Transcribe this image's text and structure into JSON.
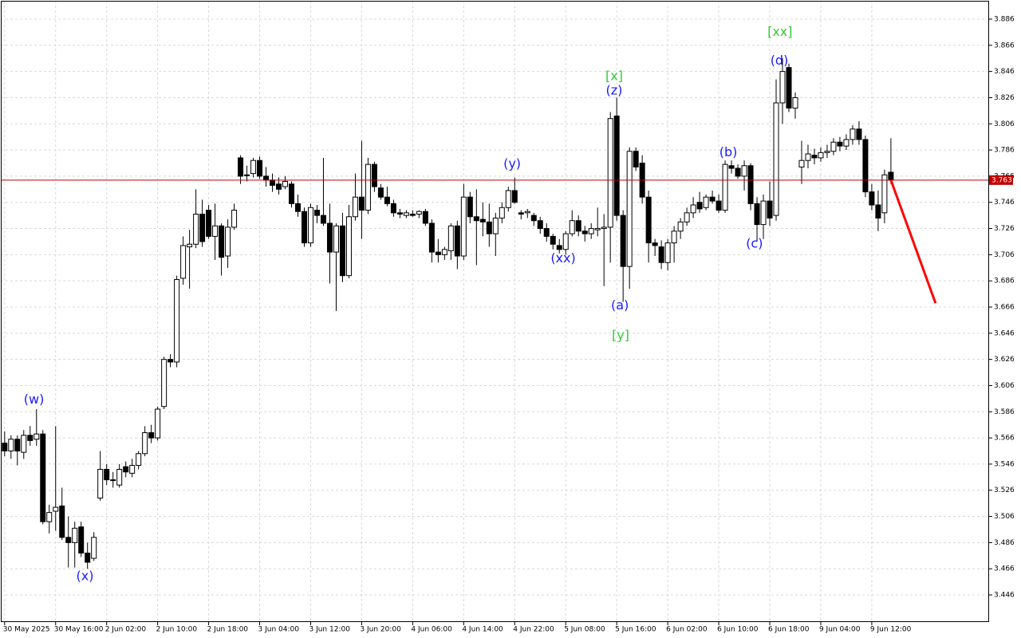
{
  "chart_data": {
    "type": "candlestick",
    "ylim": [
      3.4253,
      3.9
    ],
    "yticks": [
      3.446,
      3.466,
      3.486,
      3.506,
      3.526,
      3.546,
      3.566,
      3.586,
      3.606,
      3.626,
      3.646,
      3.666,
      3.686,
      3.706,
      3.726,
      3.746,
      3.766,
      3.786,
      3.806,
      3.826,
      3.846,
      3.866,
      3.886
    ],
    "xlim": [
      -0.6,
      154.4
    ],
    "xticks": [
      {
        "value": 0,
        "label": "30 May 2025"
      },
      {
        "value": 8,
        "label": "30 May 16:00"
      },
      {
        "value": 16,
        "label": "2 Jun 02:00"
      },
      {
        "value": 24,
        "label": "2 Jun 10:00"
      },
      {
        "value": 32,
        "label": "2 Jun 18:00"
      },
      {
        "value": 40,
        "label": "3 Jun 04:00"
      },
      {
        "value": 48,
        "label": "3 Jun 12:00"
      },
      {
        "value": 56,
        "label": "3 Jun 20:00"
      },
      {
        "value": 64,
        "label": "4 Jun 06:00"
      },
      {
        "value": 72,
        "label": "4 Jun 14:00"
      },
      {
        "value": 80,
        "label": "4 Jun 22:00"
      },
      {
        "value": 88,
        "label": "5 Jun 08:00"
      },
      {
        "value": 96,
        "label": "5 Jun 16:00"
      },
      {
        "value": 104,
        "label": "6 Jun 02:00"
      },
      {
        "value": 112,
        "label": "6 Jun 10:00"
      },
      {
        "value": 120,
        "label": "6 Jun 18:00"
      },
      {
        "value": 128,
        "label": "9 Jun 04:00"
      },
      {
        "value": 136,
        "label": "9 Jun 12:00"
      }
    ],
    "grid": true,
    "bull_color": "#ffffff",
    "bear_color": "#000000",
    "open": [
      3.562,
      3.556,
      3.565,
      3.555,
      3.568,
      3.565,
      3.569,
      3.502,
      3.51,
      3.514,
      3.49,
      3.486,
      3.498,
      3.478,
      3.474,
      3.52,
      3.542,
      3.534,
      3.53,
      3.544,
      3.539,
      3.545,
      3.554,
      3.57,
      3.566,
      3.59,
      3.626,
      3.624,
      3.688,
      3.712,
      3.714,
      3.737,
      3.74,
      3.72,
      3.728,
      3.705,
      3.727,
      3.78,
      3.767,
      3.768,
      3.778,
      3.766,
      3.763,
      3.76,
      3.758,
      3.76,
      3.745,
      3.739,
      3.715,
      3.74,
      3.736,
      3.73,
      3.708,
      3.728,
      3.69,
      3.735,
      3.75,
      3.74,
      3.775,
      3.757,
      3.75,
      3.745,
      3.738,
      3.736,
      3.737,
      3.737,
      3.739,
      3.73,
      3.708,
      3.706,
      3.709,
      3.728,
      3.705,
      3.75,
      3.735,
      3.733,
      3.731,
      3.722,
      3.734,
      3.742,
      3.755,
      3.738,
      3.738,
      3.736,
      3.732,
      3.726,
      3.72,
      3.713,
      3.71,
      3.722,
      3.732,
      3.724,
      3.722,
      3.725,
      3.726,
      3.727,
      3.812,
      3.736,
      3.697,
      3.785,
      3.776,
      3.75,
      3.715,
      3.712,
      3.7,
      3.715,
      3.724,
      3.731,
      3.738,
      3.746,
      3.742,
      3.75,
      3.747,
      3.74,
      3.774,
      3.772,
      3.766,
      3.774,
      3.745,
      3.729,
      3.747,
      3.736,
      3.822,
      3.849,
      3.818,
      3.773,
      3.778,
      3.782,
      3.78,
      3.784,
      3.785,
      3.792,
      3.789,
      3.794,
      3.802,
      3.794,
      3.754,
      3.744,
      3.738,
      3.769
    ],
    "high": [
      3.571,
      3.568,
      3.568,
      3.572,
      3.575,
      3.588,
      3.572,
      3.515,
      3.575,
      3.528,
      3.506,
      3.502,
      3.502,
      3.486,
      3.494,
      3.556,
      3.546,
      3.54,
      3.546,
      3.548,
      3.55,
      3.556,
      3.575,
      3.576,
      3.59,
      3.628,
      3.63,
      3.69,
      3.72,
      3.725,
      3.756,
      3.748,
      3.744,
      3.745,
      3.73,
      3.733,
      3.745,
      3.782,
      3.774,
      3.78,
      3.781,
      3.773,
      3.768,
      3.765,
      3.766,
      3.762,
      3.752,
      3.742,
      3.745,
      3.744,
      3.78,
      3.745,
      3.73,
      3.738,
      3.744,
      3.768,
      3.793,
      3.78,
      3.777,
      3.76,
      3.758,
      3.748,
      3.741,
      3.74,
      3.74,
      3.74,
      3.741,
      3.733,
      3.718,
      3.712,
      3.73,
      3.732,
      3.76,
      3.754,
      3.756,
      3.746,
      3.745,
      3.738,
      3.746,
      3.758,
      3.765,
      3.74,
      3.741,
      3.738,
      3.735,
      3.73,
      3.722,
      3.718,
      3.724,
      3.74,
      3.736,
      3.728,
      3.73,
      3.742,
      3.737,
      3.815,
      3.826,
      3.74,
      3.788,
      3.788,
      3.782,
      3.755,
      3.718,
      3.717,
      3.718,
      3.728,
      3.734,
      3.742,
      3.75,
      3.754,
      3.752,
      3.755,
      3.752,
      3.778,
      3.778,
      3.775,
      3.778,
      3.776,
      3.75,
      3.752,
      3.762,
      3.84,
      3.856,
      3.852,
      3.83,
      3.793,
      3.79,
      3.787,
      3.788,
      3.79,
      3.795,
      3.796,
      3.798,
      3.805,
      3.808,
      3.797,
      3.76,
      3.755,
      3.771,
      3.795
    ],
    "low": [
      3.552,
      3.55,
      3.545,
      3.55,
      3.56,
      3.56,
      3.5,
      3.493,
      3.495,
      3.488,
      3.467,
      3.467,
      3.475,
      3.466,
      3.472,
      3.518,
      3.53,
      3.528,
      3.528,
      3.536,
      3.536,
      3.542,
      3.552,
      3.562,
      3.564,
      3.588,
      3.62,
      3.62,
      3.683,
      3.68,
      3.711,
      3.712,
      3.718,
      3.702,
      3.69,
      3.696,
      3.725,
      3.76,
      3.762,
      3.765,
      3.764,
      3.758,
      3.754,
      3.752,
      3.756,
      3.742,
      3.735,
      3.712,
      3.712,
      3.73,
      3.728,
      3.684,
      3.663,
      3.685,
      3.688,
      3.732,
      3.718,
      3.737,
      3.754,
      3.748,
      3.743,
      3.735,
      3.734,
      3.734,
      3.735,
      3.734,
      3.728,
      3.7,
      3.7,
      3.702,
      3.702,
      3.695,
      3.702,
      3.73,
      3.698,
      3.72,
      3.712,
      3.705,
      3.73,
      3.739,
      3.745,
      3.733,
      3.734,
      3.728,
      3.722,
      3.716,
      3.71,
      3.707,
      3.706,
      3.72,
      3.72,
      3.716,
      3.718,
      3.72,
      3.682,
      3.7,
      3.732,
      3.67,
      3.68,
      3.77,
      3.745,
      3.7,
      3.705,
      3.695,
      3.694,
      3.7,
      3.718,
      3.728,
      3.734,
      3.738,
      3.74,
      3.745,
      3.738,
      3.738,
      3.768,
      3.764,
      3.755,
      3.74,
      3.716,
      3.718,
      3.728,
      3.732,
      3.806,
      3.815,
      3.81,
      3.76,
      3.772,
      3.775,
      3.777,
      3.78,
      3.782,
      3.785,
      3.786,
      3.79,
      3.79,
      3.75,
      3.74,
      3.724,
      3.73,
      3.76
    ],
    "close": [
      3.556,
      3.565,
      3.556,
      3.568,
      3.564,
      3.569,
      3.502,
      3.509,
      3.513,
      3.49,
      3.486,
      3.497,
      3.478,
      3.471,
      3.49,
      3.542,
      3.534,
      3.534,
      3.542,
      3.54,
      3.545,
      3.554,
      3.57,
      3.566,
      3.588,
      3.626,
      3.624,
      3.687,
      3.713,
      3.714,
      3.737,
      3.716,
      3.72,
      3.728,
      3.704,
      3.727,
      3.74,
      3.766,
      3.767,
      3.778,
      3.766,
      3.763,
      3.759,
      3.756,
      3.762,
      3.745,
      3.739,
      3.715,
      3.742,
      3.736,
      3.73,
      3.708,
      3.728,
      3.69,
      3.735,
      3.75,
      3.74,
      3.775,
      3.758,
      3.75,
      3.745,
      3.738,
      3.737,
      3.738,
      3.736,
      3.739,
      3.73,
      3.708,
      3.706,
      3.71,
      3.728,
      3.705,
      3.75,
      3.735,
      3.732,
      3.731,
      3.722,
      3.734,
      3.742,
      3.755,
      3.746,
      3.737,
      3.739,
      3.732,
      3.726,
      3.72,
      3.714,
      3.71,
      3.722,
      3.732,
      3.724,
      3.722,
      3.726,
      3.726,
      3.727,
      3.81,
      3.736,
      3.697,
      3.785,
      3.773,
      3.75,
      3.715,
      3.713,
      3.7,
      3.715,
      3.724,
      3.731,
      3.738,
      3.744,
      3.741,
      3.75,
      3.747,
      3.74,
      3.775,
      3.772,
      3.766,
      3.774,
      3.745,
      3.729,
      3.747,
      3.734,
      3.822,
      3.846,
      3.818,
      3.826,
      3.778,
      3.783,
      3.78,
      3.784,
      3.785,
      3.792,
      3.789,
      3.794,
      3.802,
      3.794,
      3.754,
      3.744,
      3.734,
      3.767,
      3.763
    ],
    "current_price": 3.763,
    "current_price_color": "#c00000",
    "forecast": {
      "color": "#ff0000",
      "x": [
        139,
        146
      ],
      "values": [
        3.763,
        3.669
      ]
    },
    "annotations": [
      {
        "text": "(w)",
        "color": "#1a1aff",
        "x": 4.6,
        "y": 3.595
      },
      {
        "text": "(x)",
        "color": "#1a1aff",
        "x": 12.6,
        "y": 3.46
      },
      {
        "text": "(y)",
        "color": "#1a1aff",
        "x": 79.6,
        "y": 3.775
      },
      {
        "text": "(xx)",
        "color": "#1a1aff",
        "x": 87.6,
        "y": 3.703
      },
      {
        "text": "[x]",
        "color": "#33cc33",
        "x": 95.6,
        "y": 3.842
      },
      {
        "text": "(z)",
        "color": "#1a1aff",
        "x": 95.6,
        "y": 3.831
      },
      {
        "text": "(a)",
        "color": "#1a1aff",
        "x": 96.5,
        "y": 3.667
      },
      {
        "text": "[y]",
        "color": "#33cc33",
        "x": 96.6,
        "y": 3.644
      },
      {
        "text": "(b)",
        "color": "#1a1aff",
        "x": 113.5,
        "y": 3.784
      },
      {
        "text": "(c)",
        "color": "#1a1aff",
        "x": 117.6,
        "y": 3.714
      },
      {
        "text": "(d)",
        "color": "#1a1aff",
        "x": 121.5,
        "y": 3.854
      },
      {
        "text": "[xx]",
        "color": "#33cc33",
        "x": 121.6,
        "y": 3.876
      }
    ]
  }
}
